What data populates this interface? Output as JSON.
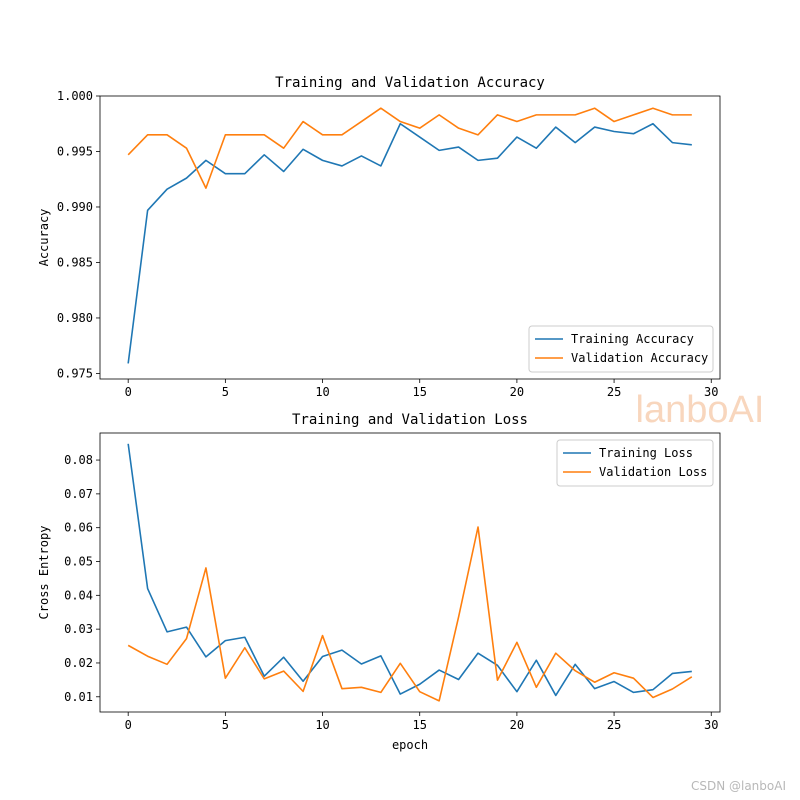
{
  "chart_data": [
    {
      "type": "line",
      "title": "Training and Validation Accuracy",
      "xlabel": "",
      "ylabel": "Accuracy",
      "xlim": [
        -1.45,
        30.45
      ],
      "ylim": [
        0.9745,
        1.0
      ],
      "xticks": [
        0,
        5,
        10,
        15,
        20,
        25,
        30
      ],
      "yticks": [
        0.975,
        0.98,
        0.985,
        0.99,
        0.995,
        1.0
      ],
      "ytick_labels": [
        "0.975",
        "0.980",
        "0.985",
        "0.990",
        "0.995",
        "1.000"
      ],
      "legend_position": "lower-right",
      "x": [
        0,
        1,
        2,
        3,
        4,
        5,
        6,
        7,
        8,
        9,
        10,
        11,
        12,
        13,
        14,
        15,
        16,
        17,
        18,
        19,
        20,
        21,
        22,
        23,
        24,
        25,
        26,
        27,
        28,
        29
      ],
      "series": [
        {
          "name": "Training Accuracy",
          "color": "#1f77b4",
          "values": [
            0.9759,
            0.9897,
            0.9916,
            0.9926,
            0.9942,
            0.993,
            0.993,
            0.9947,
            0.9932,
            0.9952,
            0.9942,
            0.9937,
            0.9946,
            0.9937,
            0.9975,
            0.9963,
            0.9951,
            0.9954,
            0.9942,
            0.9944,
            0.9963,
            0.9953,
            0.9972,
            0.9958,
            0.9972,
            0.9968,
            0.9966,
            0.9975,
            0.9958,
            0.9956
          ]
        },
        {
          "name": "Validation Accuracy",
          "color": "#ff7f0e",
          "values": [
            0.9947,
            0.9965,
            0.9965,
            0.9953,
            0.9917,
            0.9965,
            0.9965,
            0.9965,
            0.9953,
            0.9977,
            0.9965,
            0.9965,
            0.9977,
            0.9989,
            0.9977,
            0.9971,
            0.9983,
            0.9971,
            0.9965,
            0.9983,
            0.9977,
            0.9983,
            0.9983,
            0.9983,
            0.9989,
            0.9977,
            0.9983,
            0.9989,
            0.9983,
            0.9983
          ]
        }
      ]
    },
    {
      "type": "line",
      "title": "Training and Validation Loss",
      "xlabel": "epoch",
      "ylabel": "Cross Entropy",
      "xlim": [
        -1.45,
        30.45
      ],
      "ylim": [
        0.0055,
        0.088
      ],
      "xticks": [
        0,
        5,
        10,
        15,
        20,
        25,
        30
      ],
      "yticks": [
        0.01,
        0.02,
        0.03,
        0.04,
        0.05,
        0.06,
        0.07,
        0.08
      ],
      "ytick_labels": [
        "0.01",
        "0.02",
        "0.03",
        "0.04",
        "0.05",
        "0.06",
        "0.07",
        "0.08"
      ],
      "legend_position": "upper-right",
      "x": [
        0,
        1,
        2,
        3,
        4,
        5,
        6,
        7,
        8,
        9,
        10,
        11,
        12,
        13,
        14,
        15,
        16,
        17,
        18,
        19,
        20,
        21,
        22,
        23,
        24,
        25,
        26,
        27,
        28,
        29
      ],
      "series": [
        {
          "name": "Training Loss",
          "color": "#1f77b4",
          "values": [
            0.0848,
            0.042,
            0.0292,
            0.0306,
            0.0218,
            0.0266,
            0.0276,
            0.0161,
            0.0217,
            0.0146,
            0.0219,
            0.0238,
            0.0197,
            0.0221,
            0.0108,
            0.0137,
            0.0179,
            0.0151,
            0.0229,
            0.0193,
            0.0115,
            0.0208,
            0.0104,
            0.0196,
            0.0124,
            0.0145,
            0.0113,
            0.0121,
            0.0169,
            0.0175
          ]
        },
        {
          "name": "Validation Loss",
          "color": "#ff7f0e",
          "values": [
            0.0252,
            0.022,
            0.0196,
            0.0272,
            0.0481,
            0.0155,
            0.0245,
            0.0153,
            0.0176,
            0.0116,
            0.0281,
            0.0124,
            0.0128,
            0.0113,
            0.0199,
            0.0115,
            0.0088,
            0.0336,
            0.0602,
            0.0149,
            0.0261,
            0.0128,
            0.0229,
            0.0177,
            0.0143,
            0.0171,
            0.0155,
            0.0098,
            0.0123,
            0.0159
          ]
        }
      ]
    }
  ],
  "watermarks": {
    "big": "lanboAI",
    "small": "CSDN @lanboAI"
  }
}
